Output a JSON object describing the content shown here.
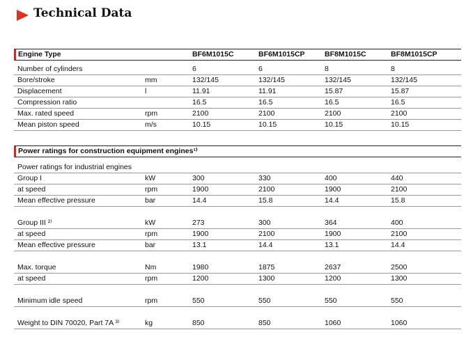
{
  "title": "Technical Data",
  "table1": {
    "header": [
      "Engine Type",
      "BF6M1015C",
      "BF6M1015CP",
      "BF8M1015C",
      "BF8M1015CP"
    ],
    "rows": [
      [
        "Number of cylinders",
        "",
        "6",
        "6",
        "8",
        "8"
      ],
      [
        "Bore/stroke",
        "mm",
        "132/145",
        "132/145",
        "132/145",
        "132/145"
      ],
      [
        "Displacement",
        "l",
        "11.91",
        "11.91",
        "15.87",
        "15.87"
      ],
      [
        "Compression ratio",
        "",
        "16.5",
        "16.5",
        "16.5",
        "16.5"
      ],
      [
        "Max. rated speed",
        "rpm",
        "2100",
        "2100",
        "2100",
        "2100"
      ],
      [
        "Mean piston speed",
        "m/s",
        "10.15",
        "10.15",
        "10.15",
        "10.15"
      ]
    ]
  },
  "table2": {
    "header": "Power ratings for construction equipment engines¹⁾",
    "blocks": [
      [
        [
          "Power ratings for industrial engines"
        ],
        [
          "Group I",
          "kW",
          "300",
          "330",
          "400",
          "440"
        ],
        [
          "at speed",
          "rpm",
          "1900",
          "2100",
          "1900",
          "2100"
        ],
        [
          "Mean effective pressure",
          "bar",
          "14.4",
          "15.8",
          "14.4",
          "15.8"
        ]
      ],
      [
        [
          "Group III ²⁾",
          "kW",
          "273",
          "300",
          "364",
          "400"
        ],
        [
          "at speed",
          "rpm",
          "1900",
          "2100",
          "1900",
          "2100"
        ],
        [
          "Mean effective pressure",
          "bar",
          "13.1",
          "14.4",
          "13.1",
          "14.4"
        ]
      ],
      [
        [
          "Max. torque",
          "Nm",
          "1980",
          "1875",
          "2637",
          "2500"
        ],
        [
          "at speed",
          "rpm",
          "1200",
          "1300",
          "1200",
          "1300"
        ]
      ],
      [
        [
          "Minimum idle speed",
          "rpm",
          "550",
          "550",
          "550",
          "550"
        ]
      ],
      [
        [
          "Weight to DIN 70020, Part 7A ³⁾",
          "kg",
          "850",
          "850",
          "1060",
          "1060"
        ]
      ]
    ]
  }
}
